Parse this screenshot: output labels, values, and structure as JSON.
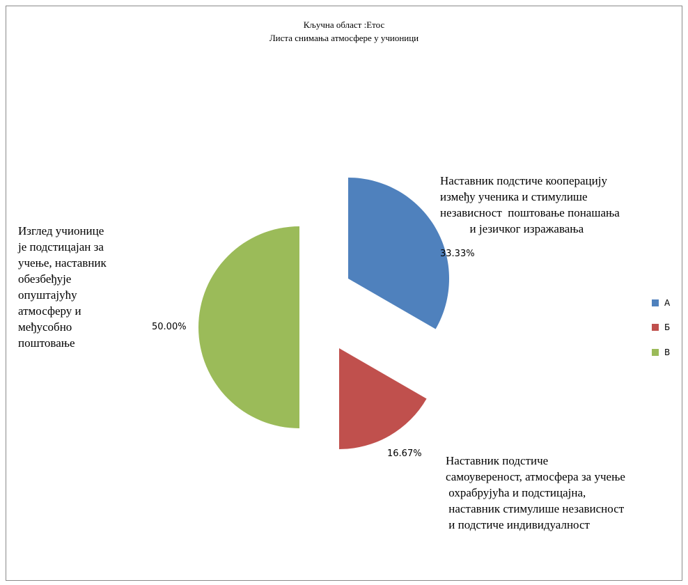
{
  "chart_data": {
    "type": "pie",
    "title": "Кључна област :Етос",
    "subtitle": "Листа снимања атмосфере у учионици",
    "categories": [
      "А",
      "Б",
      "В"
    ],
    "values": [
      33.33,
      16.67,
      50.0
    ],
    "value_labels": [
      "33.33%",
      "16.67%",
      "50.00%"
    ],
    "colors": [
      "#4f81bd",
      "#c0504d",
      "#9bbb59"
    ],
    "legend_position": "right",
    "annotations": [
      [
        "Наставник подстиче кооперацију",
        "између ученика и стимулише",
        "независност  поштовање понашања",
        "          и језичког изражавања"
      ],
      [
        "Наставник подстиче",
        "самоувереност, атмосфера за учење",
        " охрабрујућа и подстицајна,",
        " наставник стимулише независност",
        " и подстиче индивидуалност"
      ],
      [
        "Изглед учионице",
        "је подстицајан за",
        "учење, наставник",
        "обезбеђује",
        "опуштајућу",
        "атмосферу и",
        "међусобно",
        "поштовање"
      ]
    ]
  }
}
